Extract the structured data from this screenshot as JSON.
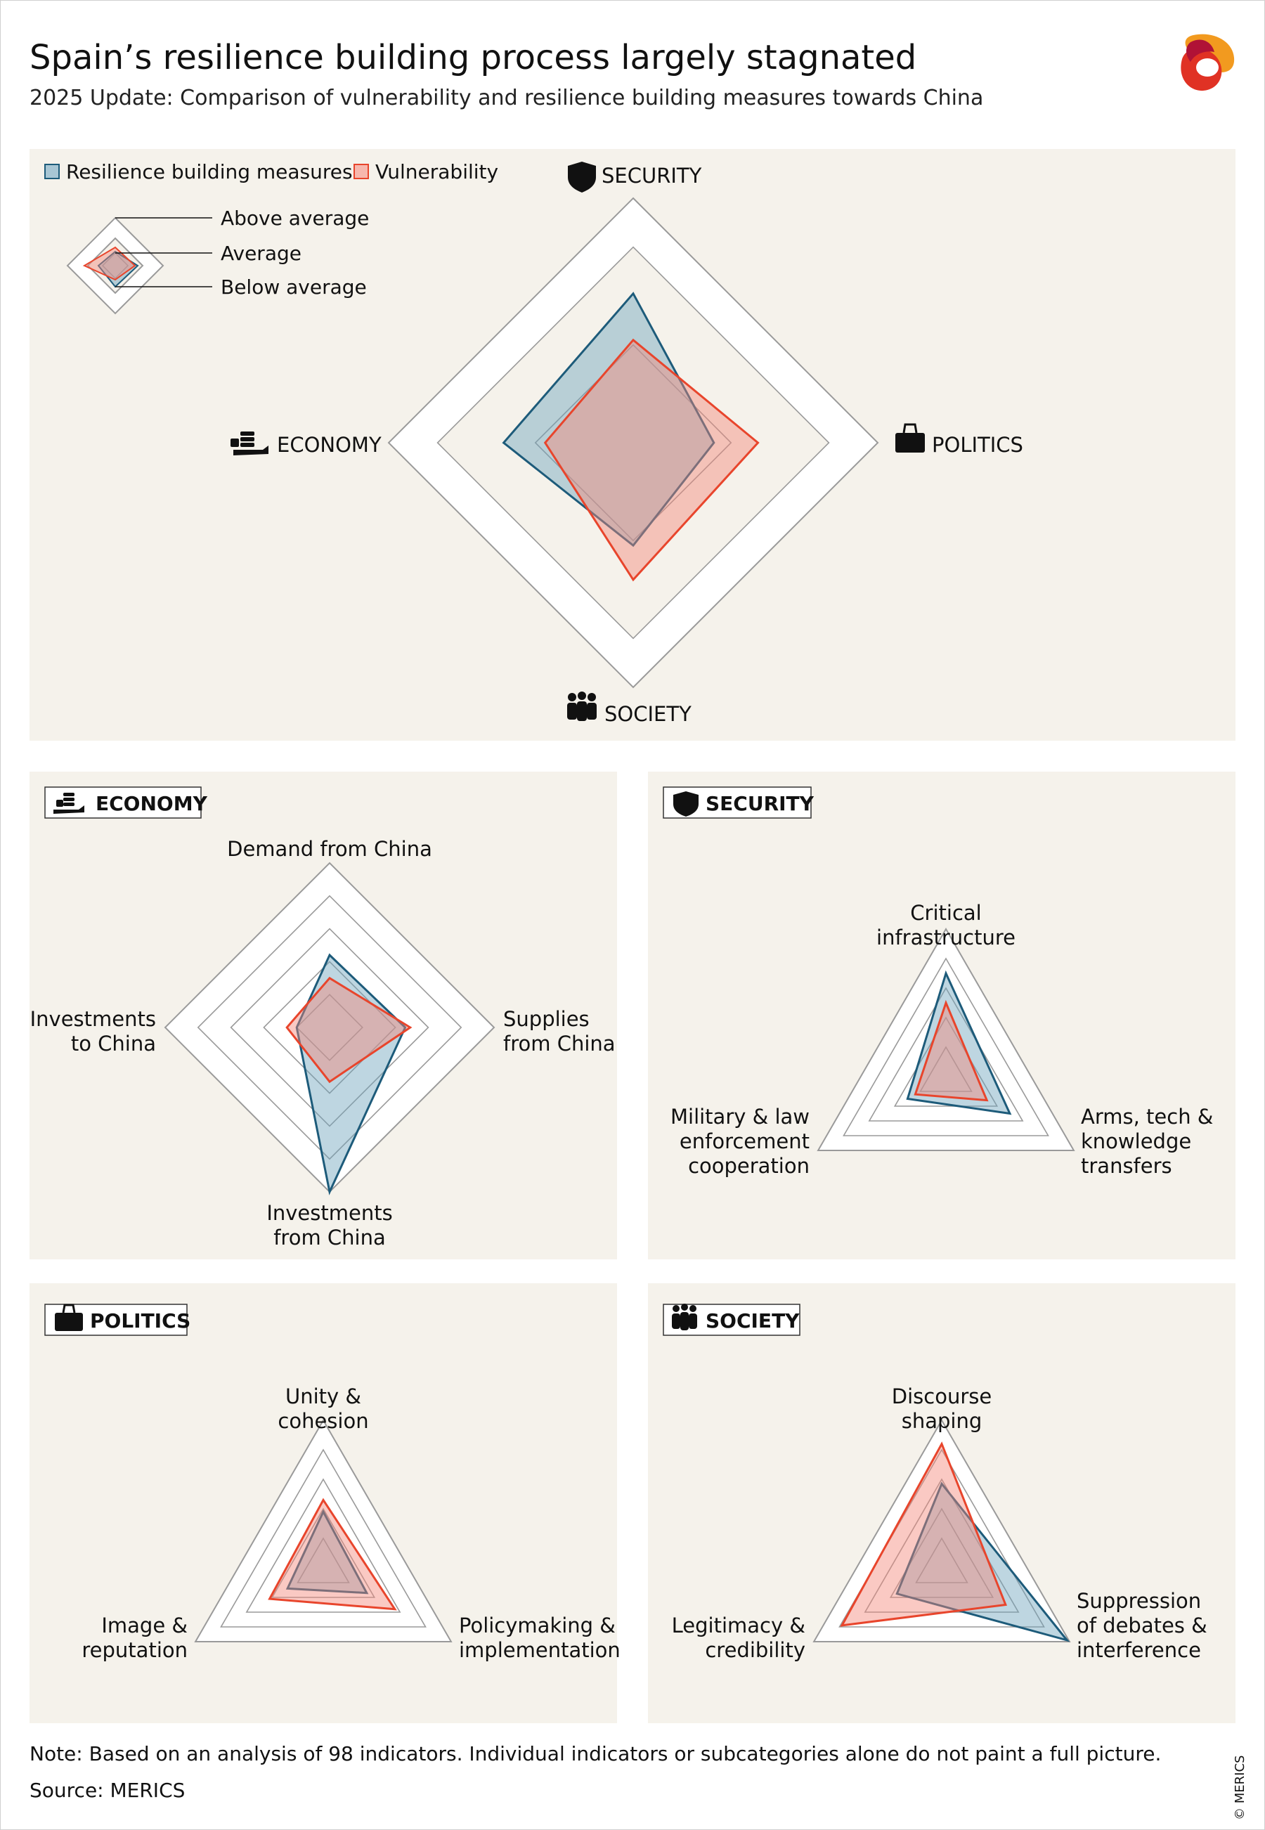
{
  "title": "Spain’s resilience building process largely stagnated",
  "subtitle": "2025 Update: Comparison of vulnerability and resilience building measures towards China",
  "legend": {
    "resilience": "Resilience building measures",
    "vulnerability": "Vulnerability",
    "above_average": "Above average",
    "average": "Average",
    "below_average": "Below average"
  },
  "colors": {
    "resilience_stroke": "#1d5b7a",
    "resilience_fill": "#6fa4bd",
    "vulnerability_stroke": "#e8452c",
    "vulnerability_fill": "#f4877a",
    "panel_bg": "#f5f2eb",
    "ring_stroke": "#9a9a9a"
  },
  "icons": {
    "security": "shield-icon",
    "politics": "briefcase-icon",
    "society": "people-icon",
    "economy": "coins-hand-icon",
    "logo": "merics-logo"
  },
  "note": "Note: Based on an analysis of 98 indicators. Individual indicators or subcategories alone do not paint a full picture.",
  "source": "Source: MERICS",
  "copyright": "© MERICS",
  "chart_data": [
    {
      "id": "overview",
      "type": "radar",
      "title": "",
      "axes": [
        "SECURITY",
        "POLITICS",
        "SOCIETY",
        "ECONOMY"
      ],
      "scale": [
        0,
        1
      ],
      "rings": [
        0.4,
        0.8,
        1.0
      ],
      "series": [
        {
          "name": "Resilience building measures",
          "values": [
            0.61,
            0.33,
            0.42,
            0.53
          ]
        },
        {
          "name": "Vulnerability",
          "values": [
            0.42,
            0.51,
            0.56,
            0.36
          ]
        }
      ]
    },
    {
      "id": "economy",
      "type": "radar",
      "title": "ECONOMY",
      "axes": [
        "Demand from China",
        "Supplies from China",
        "Investments from China",
        "Investments to China"
      ],
      "scale": [
        0,
        1
      ],
      "rings": [
        0.2,
        0.4,
        0.6,
        0.8,
        1.0
      ],
      "series": [
        {
          "name": "Resilience building measures",
          "values": [
            0.44,
            0.46,
            1.0,
            0.2
          ]
        },
        {
          "name": "Vulnerability",
          "values": [
            0.3,
            0.49,
            0.33,
            0.26
          ]
        }
      ]
    },
    {
      "id": "security",
      "type": "radar",
      "title": "SECURITY",
      "axes": [
        "Critical\ninfrastructure",
        "Arms, tech &\nknowledge\ntransfers",
        "Military & law\nenforcement\ncooperation"
      ],
      "scale": [
        0,
        1
      ],
      "rings": [
        0.2,
        0.4,
        0.6,
        0.8,
        1.0
      ],
      "series": [
        {
          "name": "Resilience building measures",
          "values": [
            0.7,
            0.5,
            0.3
          ]
        },
        {
          "name": "Vulnerability",
          "values": [
            0.5,
            0.32,
            0.24
          ]
        }
      ]
    },
    {
      "id": "politics",
      "type": "radar",
      "title": "POLITICS",
      "axes": [
        "Unity &\ncohesion",
        "Policymaking &\nimplementation",
        "Image &\nreputation"
      ],
      "scale": [
        0,
        1
      ],
      "rings": [
        0.2,
        0.4,
        0.6,
        0.8,
        1.0
      ],
      "series": [
        {
          "name": "Resilience building measures",
          "values": [
            0.38,
            0.34,
            0.28
          ]
        },
        {
          "name": "Vulnerability",
          "values": [
            0.46,
            0.56,
            0.42
          ]
        }
      ]
    },
    {
      "id": "society",
      "type": "radar",
      "title": "SOCIETY",
      "axes": [
        "Discourse\nshaping",
        "Suppression\nof debates &\ninterference",
        "Legitimacy &\ncredibility"
      ],
      "scale": [
        0,
        1
      ],
      "rings": [
        0.2,
        0.4,
        0.6,
        0.8,
        1.0
      ],
      "series": [
        {
          "name": "Resilience building measures",
          "values": [
            0.57,
            0.98,
            0.35
          ]
        },
        {
          "name": "Vulnerability",
          "values": [
            0.84,
            0.5,
            0.78
          ]
        }
      ]
    }
  ]
}
